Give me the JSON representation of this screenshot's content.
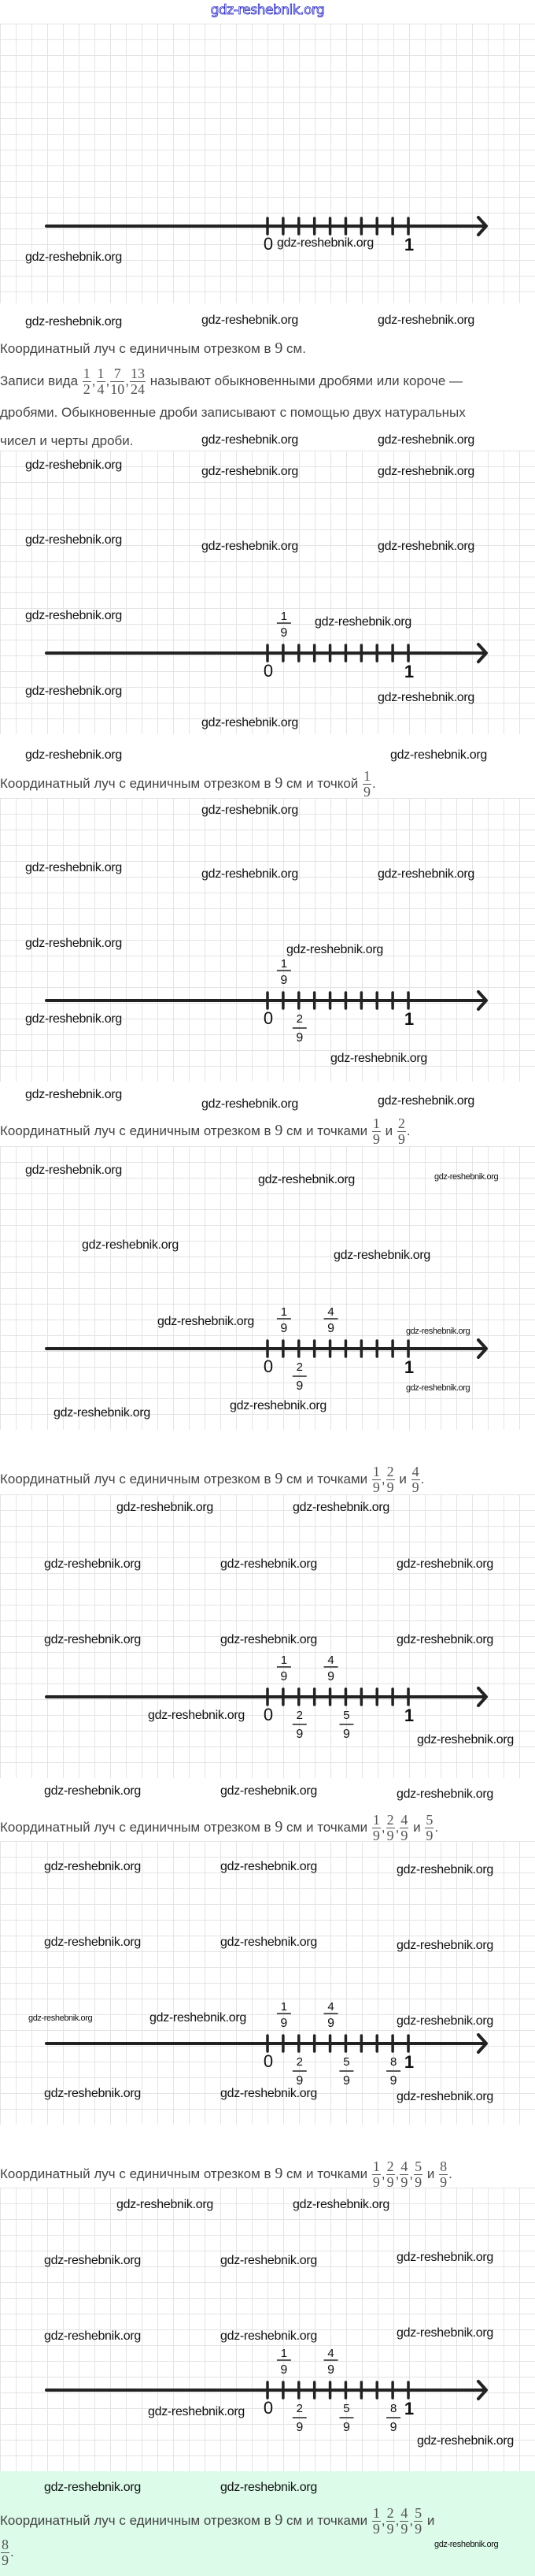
{
  "header": {
    "site": "gdz-reshebnik.org",
    "color": "#2020c0"
  },
  "watermark": "gdz-reshebnik.org",
  "axis": {
    "zero_label": "0",
    "one_label": "1",
    "divisions": 9,
    "unit_length_cm": 9
  },
  "caption_common": {
    "prefix": "Координатный луч с единичным отрезком в",
    "nine": "9",
    "unit": "см",
    "with_point": "и точкой",
    "with_points": "и точками",
    "and": "и",
    "end": "."
  },
  "intro": {
    "line1_start": "Записи вида",
    "fractions": [
      {
        "num": "1",
        "den": "2"
      },
      {
        "num": "1",
        "den": "4"
      },
      {
        "num": "7",
        "den": "10"
      },
      {
        "num": "13",
        "den": "24"
      }
    ],
    "line1_end": "называют обыкновенными дробями или короче —",
    "line2": "дробями. Обыкновенные дроби записывают с помощью двух натуральных",
    "line3": "чисел и черты дроби."
  },
  "sections": [
    {
      "marks": [],
      "caption_fractions": []
    },
    {
      "marks": [
        {
          "num": "1",
          "den": "9",
          "pos": "above"
        }
      ],
      "caption_fractions": [
        {
          "num": "1",
          "den": "9"
        }
      ]
    },
    {
      "marks": [
        {
          "num": "1",
          "den": "9",
          "pos": "above"
        },
        {
          "num": "2",
          "den": "9",
          "pos": "below"
        }
      ],
      "caption_fractions": [
        {
          "num": "1",
          "den": "9"
        },
        {
          "num": "2",
          "den": "9"
        }
      ]
    },
    {
      "marks": [
        {
          "num": "1",
          "den": "9",
          "pos": "above"
        },
        {
          "num": "2",
          "den": "9",
          "pos": "below"
        },
        {
          "num": "4",
          "den": "9",
          "pos": "above"
        }
      ],
      "caption_fractions": [
        {
          "num": "1",
          "den": "9"
        },
        {
          "num": "2",
          "den": "9"
        },
        {
          "num": "4",
          "den": "9"
        }
      ]
    },
    {
      "marks": [
        {
          "num": "1",
          "den": "9",
          "pos": "above"
        },
        {
          "num": "2",
          "den": "9",
          "pos": "below"
        },
        {
          "num": "4",
          "den": "9",
          "pos": "above"
        },
        {
          "num": "5",
          "den": "9",
          "pos": "below"
        }
      ],
      "caption_fractions": [
        {
          "num": "1",
          "den": "9"
        },
        {
          "num": "2",
          "den": "9"
        },
        {
          "num": "4",
          "den": "9"
        },
        {
          "num": "5",
          "den": "9"
        }
      ]
    },
    {
      "marks": [
        {
          "num": "1",
          "den": "9",
          "pos": "above"
        },
        {
          "num": "2",
          "den": "9",
          "pos": "below"
        },
        {
          "num": "4",
          "den": "9",
          "pos": "above"
        },
        {
          "num": "5",
          "den": "9",
          "pos": "below"
        },
        {
          "num": "8",
          "den": "9",
          "pos": "below"
        }
      ],
      "caption_fractions": [
        {
          "num": "1",
          "den": "9"
        },
        {
          "num": "2",
          "den": "9"
        },
        {
          "num": "4",
          "den": "9"
        },
        {
          "num": "5",
          "den": "9"
        },
        {
          "num": "8",
          "den": "9"
        }
      ]
    },
    {
      "marks": [
        {
          "num": "1",
          "den": "9",
          "pos": "above"
        },
        {
          "num": "2",
          "den": "9",
          "pos": "below"
        },
        {
          "num": "4",
          "den": "9",
          "pos": "above"
        },
        {
          "num": "5",
          "den": "9",
          "pos": "below"
        },
        {
          "num": "8",
          "den": "9",
          "pos": "below"
        }
      ],
      "caption_fractions": [
        {
          "num": "1",
          "den": "9"
        },
        {
          "num": "2",
          "den": "9"
        },
        {
          "num": "4",
          "den": "9"
        },
        {
          "num": "5",
          "den": "9"
        },
        {
          "num": "8",
          "den": "9"
        }
      ]
    }
  ],
  "colors": {
    "grid": "#e4e4e4",
    "highlight": "#dcfbe9",
    "text": "#444444",
    "axis": "#222222"
  }
}
